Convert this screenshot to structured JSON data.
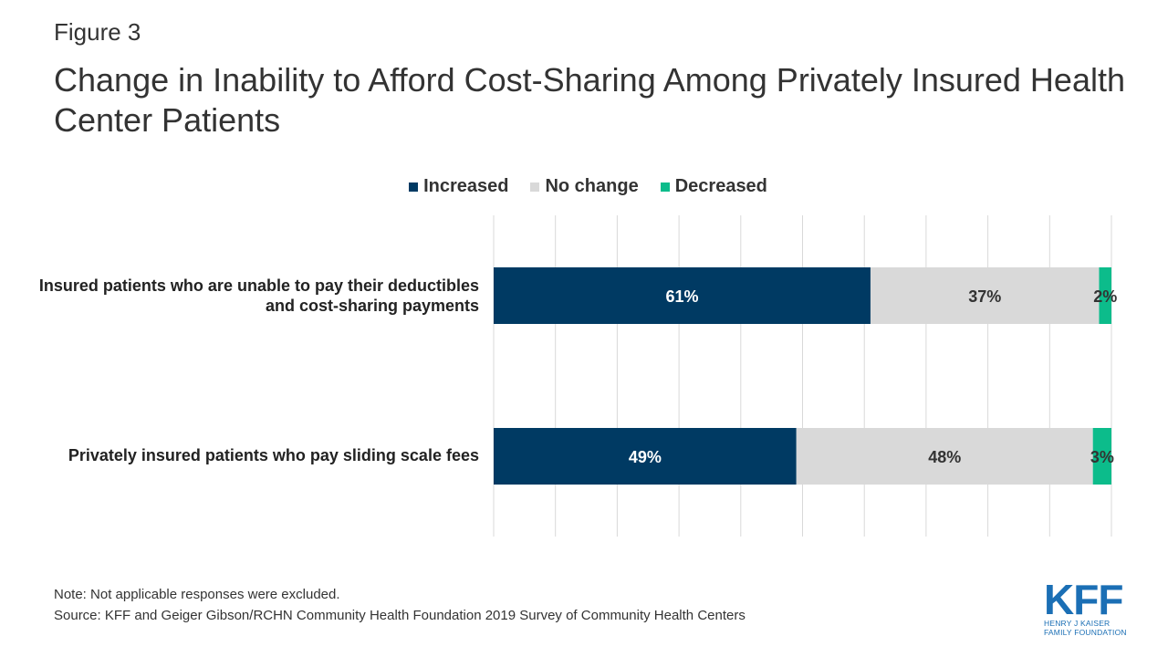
{
  "figure_label": "Figure 3",
  "chart_data": {
    "type": "bar",
    "orientation": "horizontal",
    "stacked": true,
    "title": "Change in Inability to Afford Cost-Sharing Among Privately Insured Health Center Patients",
    "categories": [
      "Insured patients who are unable to pay their deductibles and cost-sharing payments",
      "Privately insured patients who pay sliding scale fees"
    ],
    "series": [
      {
        "name": "Increased",
        "color": "#003a63",
        "values": [
          61,
          49
        ],
        "labels": [
          "61%",
          "49%"
        ]
      },
      {
        "name": "No change",
        "color": "#d9d9d9",
        "values": [
          37,
          48
        ],
        "labels": [
          "37%",
          "48%"
        ]
      },
      {
        "name": "Decreased",
        "color": "#0cbc8b",
        "values": [
          2,
          3
        ],
        "labels": [
          "2%",
          "3%"
        ]
      }
    ],
    "xlim": [
      0,
      100
    ],
    "grid": true,
    "legend_position": "top-center"
  },
  "notes": {
    "note": "Note: Not applicable responses were excluded.",
    "source": "Source: KFF and Geiger Gibson/RCHN Community Health Foundation 2019 Survey of Community Health Centers"
  },
  "logo": {
    "name": "KFF",
    "line1": "HENRY J KAISER",
    "line2": "FAMILY FOUNDATION"
  }
}
